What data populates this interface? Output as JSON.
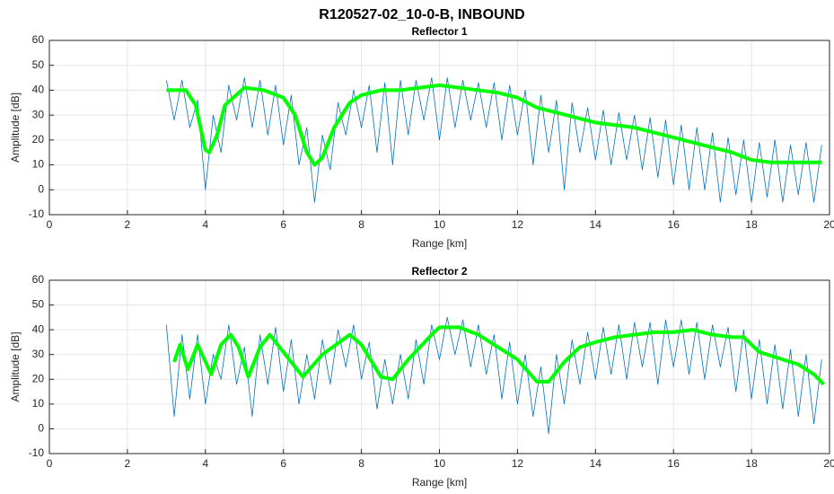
{
  "title": "R120527-02_10-0-B, INBOUND",
  "chart_data": [
    {
      "type": "line",
      "title": "Reflector 1",
      "xlabel": "Range [km]",
      "ylabel": "Amplitude [dB]",
      "xlim": [
        0,
        20
      ],
      "ylim": [
        -10,
        60
      ],
      "xticks": [
        0,
        2,
        4,
        6,
        8,
        10,
        12,
        14,
        16,
        18,
        20
      ],
      "yticks": [
        -10,
        0,
        10,
        20,
        30,
        40,
        50,
        60
      ],
      "grid": true,
      "series": [
        {
          "color": "#0072bd",
          "linewidth": 0.8,
          "x": [
            3.0,
            3.2,
            3.4,
            3.6,
            3.8,
            4.0,
            4.2,
            4.4,
            4.6,
            4.8,
            5.0,
            5.2,
            5.4,
            5.6,
            5.8,
            6.0,
            6.2,
            6.4,
            6.6,
            6.8,
            7.0,
            7.2,
            7.4,
            7.6,
            7.8,
            8.0,
            8.2,
            8.4,
            8.6,
            8.8,
            9.0,
            9.2,
            9.4,
            9.6,
            9.8,
            10.0,
            10.2,
            10.4,
            10.6,
            10.8,
            11.0,
            11.2,
            11.4,
            11.6,
            11.8,
            12.0,
            12.2,
            12.4,
            12.6,
            12.8,
            13.0,
            13.2,
            13.4,
            13.6,
            13.8,
            14.0,
            14.2,
            14.4,
            14.6,
            14.8,
            15.0,
            15.2,
            15.4,
            15.6,
            15.8,
            16.0,
            16.2,
            16.4,
            16.6,
            16.8,
            17.0,
            17.2,
            17.4,
            17.6,
            17.8,
            18.0,
            18.2,
            18.4,
            18.6,
            18.8,
            19.0,
            19.2,
            19.4,
            19.6,
            19.8
          ],
          "values": [
            44,
            28,
            44,
            25,
            36,
            0,
            30,
            15,
            42,
            28,
            45,
            25,
            44,
            22,
            42,
            18,
            38,
            10,
            25,
            -5,
            22,
            8,
            35,
            22,
            40,
            25,
            42,
            15,
            43,
            10,
            44,
            22,
            44,
            28,
            45,
            20,
            45,
            25,
            44,
            28,
            43,
            25,
            43,
            20,
            42,
            22,
            40,
            10,
            38,
            15,
            36,
            0,
            35,
            15,
            33,
            12,
            32,
            10,
            31,
            12,
            30,
            8,
            29,
            5,
            28,
            2,
            26,
            0,
            25,
            0,
            23,
            -5,
            21,
            -2,
            20,
            -5,
            19,
            -3,
            20,
            -5,
            18,
            -2,
            19,
            -5,
            18
          ]
        },
        {
          "color": "#00ff00",
          "linewidth": 4,
          "x": [
            3.0,
            3.5,
            3.75,
            4.0,
            4.1,
            4.3,
            4.5,
            5.0,
            5.5,
            6.0,
            6.3,
            6.6,
            6.8,
            7.0,
            7.3,
            7.7,
            8.0,
            8.5,
            9.0,
            9.5,
            10.0,
            10.5,
            11.0,
            11.5,
            12.0,
            12.5,
            13.0,
            13.5,
            14.0,
            14.5,
            15.0,
            15.5,
            16.0,
            16.5,
            17.0,
            17.5,
            18.0,
            18.5,
            19.0,
            19.5,
            19.8
          ],
          "values": [
            40,
            40,
            34,
            16,
            15,
            22,
            34,
            41,
            40,
            37,
            30,
            15,
            10,
            13,
            25,
            35,
            38,
            40,
            40,
            41,
            42,
            41,
            40,
            39,
            37,
            33,
            31,
            29,
            27,
            26,
            25,
            23,
            21,
            19,
            17,
            15,
            12,
            11,
            11,
            11,
            11
          ]
        }
      ]
    },
    {
      "type": "line",
      "title": "Reflector 2",
      "xlabel": "Range [km]",
      "ylabel": "Amplitude [dB]",
      "xlim": [
        0,
        20
      ],
      "ylim": [
        -10,
        60
      ],
      "xticks": [
        0,
        2,
        4,
        6,
        8,
        10,
        12,
        14,
        16,
        18,
        20
      ],
      "yticks": [
        -10,
        0,
        10,
        20,
        30,
        40,
        50,
        60
      ],
      "grid": true,
      "series": [
        {
          "color": "#0072bd",
          "linewidth": 0.8,
          "x": [
            3.0,
            3.2,
            3.4,
            3.6,
            3.8,
            4.0,
            4.2,
            4.4,
            4.6,
            4.8,
            5.0,
            5.2,
            5.4,
            5.6,
            5.8,
            6.0,
            6.2,
            6.4,
            6.6,
            6.8,
            7.0,
            7.2,
            7.4,
            7.6,
            7.8,
            8.0,
            8.2,
            8.4,
            8.6,
            8.8,
            9.0,
            9.2,
            9.4,
            9.6,
            9.8,
            10.0,
            10.2,
            10.4,
            10.6,
            10.8,
            11.0,
            11.2,
            11.4,
            11.6,
            11.8,
            12.0,
            12.2,
            12.4,
            12.6,
            12.8,
            13.0,
            13.2,
            13.4,
            13.6,
            13.8,
            14.0,
            14.2,
            14.4,
            14.6,
            14.8,
            15.0,
            15.2,
            15.4,
            15.6,
            15.8,
            16.0,
            16.2,
            16.4,
            16.6,
            16.8,
            17.0,
            17.2,
            17.4,
            17.6,
            17.8,
            18.0,
            18.2,
            18.4,
            18.6,
            18.8,
            19.0,
            19.2,
            19.4,
            19.6,
            19.8
          ],
          "values": [
            42,
            5,
            38,
            12,
            38,
            10,
            30,
            20,
            42,
            18,
            33,
            5,
            38,
            18,
            41,
            15,
            36,
            10,
            30,
            12,
            36,
            18,
            40,
            25,
            42,
            20,
            35,
            8,
            28,
            10,
            30,
            12,
            36,
            18,
            42,
            28,
            45,
            30,
            44,
            25,
            42,
            22,
            38,
            12,
            35,
            10,
            30,
            5,
            25,
            -2,
            30,
            10,
            36,
            18,
            39,
            20,
            41,
            22,
            42,
            20,
            43,
            25,
            43,
            18,
            44,
            25,
            44,
            22,
            43,
            20,
            42,
            25,
            41,
            15,
            40,
            12,
            36,
            10,
            34,
            8,
            32,
            5,
            30,
            2,
            28
          ]
        },
        {
          "color": "#00ff00",
          "linewidth": 4,
          "x": [
            3.2,
            3.35,
            3.55,
            3.8,
            4.15,
            4.4,
            4.65,
            4.85,
            5.1,
            5.4,
            5.65,
            6.0,
            6.5,
            7.0,
            7.7,
            8.0,
            8.5,
            8.8,
            9.2,
            9.8,
            10.0,
            10.5,
            11.0,
            11.5,
            12.0,
            12.5,
            12.8,
            13.2,
            13.6,
            14.0,
            14.5,
            15.0,
            15.5,
            16.0,
            16.5,
            17.0,
            17.5,
            17.8,
            18.2,
            18.8,
            19.2,
            19.6,
            19.85
          ],
          "values": [
            27,
            34,
            24,
            34,
            22,
            34,
            38,
            33,
            21,
            33,
            38,
            31,
            21,
            30,
            38,
            34,
            21,
            20,
            28,
            38,
            41,
            41,
            38,
            33,
            28,
            19,
            19,
            27,
            33,
            35,
            37,
            38,
            39,
            39,
            40,
            38,
            37,
            37,
            31,
            28,
            26,
            22,
            18
          ]
        }
      ]
    }
  ]
}
